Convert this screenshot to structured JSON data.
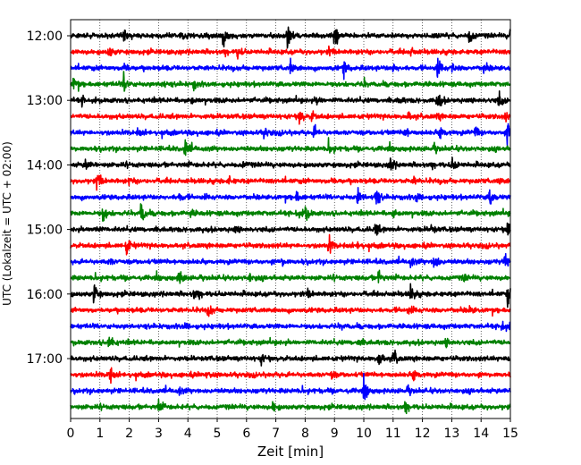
{
  "chart_data": {
    "type": "line",
    "title": "",
    "xlabel": "Zeit  [min]",
    "ylabel": "UTC (Lokalzeit = UTC + 02:00)",
    "xlim": [
      0,
      15
    ],
    "x_ticks": [
      "0",
      "1",
      "2",
      "3",
      "4",
      "5",
      "6",
      "7",
      "8",
      "9",
      "10",
      "11",
      "12",
      "13",
      "14",
      "15"
    ],
    "y_tick_labels": [
      "12:00",
      "13:00",
      "14:00",
      "15:00",
      "16:00",
      "17:00"
    ],
    "grid": "vertical dotted at each minute",
    "line_minutes": 15,
    "start_time": "12:00",
    "colors_cycle": [
      "#000000",
      "#ff0000",
      "#0000ff",
      "#008000"
    ],
    "traces": [
      {
        "start": "12:00",
        "color": "#000000",
        "events": [
          [
            5.2,
            1.0
          ],
          [
            7.4,
            1.0
          ],
          [
            9.0,
            1.0
          ],
          [
            13.6,
            0.9
          ],
          [
            15.0,
            1.0
          ],
          [
            1.8,
            0.4
          ],
          [
            3.7,
            0.3
          ]
        ]
      },
      {
        "start": "12:15",
        "color": "#ff0000",
        "events": [
          [
            1.3,
            0.6
          ],
          [
            5.7,
            0.5
          ],
          [
            8.8,
            0.3
          ],
          [
            11.6,
            0.3
          ]
        ]
      },
      {
        "start": "12:30",
        "color": "#0000ff",
        "events": [
          [
            1.8,
            0.7
          ],
          [
            7.5,
            0.6
          ],
          [
            9.3,
            0.8
          ],
          [
            11.0,
            0.4
          ],
          [
            12.5,
            0.9
          ],
          [
            13.0,
            0.4
          ],
          [
            14.1,
            0.4
          ]
        ]
      },
      {
        "start": "12:45",
        "color": "#008000",
        "events": [
          [
            0.1,
            0.7
          ],
          [
            1.8,
            1.0
          ],
          [
            3.1,
            0.4
          ],
          [
            4.2,
            0.4
          ],
          [
            10.0,
            0.3
          ]
        ]
      },
      {
        "start": "13:00",
        "color": "#000000",
        "events": [
          [
            0.4,
            0.4
          ],
          [
            4.1,
            0.3
          ],
          [
            8.4,
            0.4
          ],
          [
            11.2,
            0.3
          ],
          [
            12.5,
            1.0
          ],
          [
            14.6,
            0.7
          ]
        ]
      },
      {
        "start": "13:15",
        "color": "#ff0000",
        "events": [
          [
            7.8,
            0.7
          ],
          [
            8.2,
            0.5
          ],
          [
            11.5,
            0.4
          ],
          [
            12.5,
            0.3
          ],
          [
            14.8,
            0.4
          ]
        ]
      },
      {
        "start": "13:30",
        "color": "#0000ff",
        "events": [
          [
            2.3,
            0.3
          ],
          [
            6.6,
            0.5
          ],
          [
            8.3,
            0.6
          ],
          [
            11.4,
            0.5
          ],
          [
            12.6,
            0.8
          ],
          [
            13.8,
            0.5
          ],
          [
            14.9,
            1.0
          ]
        ]
      },
      {
        "start": "13:45",
        "color": "#008000",
        "events": [
          [
            3.9,
            1.0
          ],
          [
            8.8,
            0.5
          ],
          [
            12.4,
            0.3
          ]
        ]
      },
      {
        "start": "14:00",
        "color": "#000000",
        "events": [
          [
            0.5,
            0.5
          ],
          [
            5.9,
            0.3
          ],
          [
            10.9,
            0.8
          ],
          [
            13.0,
            0.8
          ]
        ]
      },
      {
        "start": "14:15",
        "color": "#ff0000",
        "events": [
          [
            0.9,
            0.9
          ],
          [
            2.0,
            0.3
          ],
          [
            5.4,
            0.3
          ],
          [
            8.9,
            0.3
          ],
          [
            11.7,
            0.3
          ],
          [
            14.6,
            0.3
          ]
        ]
      },
      {
        "start": "14:30",
        "color": "#0000ff",
        "events": [
          [
            3.7,
            0.4
          ],
          [
            7.7,
            0.5
          ],
          [
            9.8,
            0.8
          ],
          [
            10.4,
            1.0
          ],
          [
            11.8,
            0.5
          ],
          [
            14.3,
            0.9
          ]
        ]
      },
      {
        "start": "14:45",
        "color": "#008000",
        "events": [
          [
            1.1,
            0.8
          ],
          [
            2.4,
            1.0
          ],
          [
            4.1,
            0.3
          ],
          [
            7.7,
            0.4
          ],
          [
            8.0,
            1.0
          ],
          [
            11.0,
            0.4
          ]
        ]
      },
      {
        "start": "15:00",
        "color": "#000000",
        "events": [
          [
            0.8,
            0.4
          ],
          [
            5.6,
            0.3
          ],
          [
            10.4,
            0.6
          ],
          [
            12.3,
            0.4
          ],
          [
            14.9,
            1.0
          ]
        ]
      },
      {
        "start": "15:15",
        "color": "#ff0000",
        "events": [
          [
            1.9,
            0.9
          ],
          [
            8.8,
            1.0
          ],
          [
            9.8,
            0.3
          ]
        ]
      },
      {
        "start": "15:30",
        "color": "#0000ff",
        "events": [
          [
            1.3,
            0.3
          ],
          [
            7.2,
            0.3
          ],
          [
            11.6,
            0.4
          ],
          [
            12.4,
            1.0
          ],
          [
            14.8,
            0.9
          ]
        ]
      },
      {
        "start": "15:45",
        "color": "#008000",
        "events": [
          [
            3.7,
            0.9
          ],
          [
            6.1,
            0.3
          ],
          [
            10.5,
            0.7
          ],
          [
            13.4,
            0.3
          ]
        ]
      },
      {
        "start": "16:00",
        "color": "#000000",
        "events": [
          [
            0.8,
            1.0
          ],
          [
            4.2,
            0.4
          ],
          [
            8.1,
            0.3
          ],
          [
            11.6,
            0.9
          ],
          [
            14.9,
            0.9
          ]
        ]
      },
      {
        "start": "16:15",
        "color": "#ff0000",
        "events": [
          [
            4.7,
            0.6
          ],
          [
            11.5,
            0.3
          ],
          [
            13.6,
            0.3
          ]
        ]
      },
      {
        "start": "16:30",
        "color": "#0000ff",
        "events": [
          [
            3.9,
            0.3
          ],
          [
            9.2,
            0.3
          ],
          [
            14.7,
            0.9
          ]
        ]
      },
      {
        "start": "16:45",
        "color": "#008000",
        "events": [
          [
            1.3,
            0.9
          ],
          [
            9.8,
            0.3
          ],
          [
            12.8,
            0.3
          ]
        ]
      },
      {
        "start": "17:00",
        "color": "#000000",
        "events": [
          [
            6.5,
            0.4
          ],
          [
            10.5,
            0.9
          ],
          [
            11.0,
            0.8
          ],
          [
            14.9,
            0.4
          ]
        ]
      },
      {
        "start": "17:15",
        "color": "#ff0000",
        "events": [
          [
            1.3,
            0.9
          ],
          [
            4.6,
            0.4
          ],
          [
            8.9,
            0.4
          ],
          [
            11.7,
            0.7
          ]
        ]
      },
      {
        "start": "17:30",
        "color": "#0000ff",
        "events": [
          [
            3.7,
            0.3
          ],
          [
            10.0,
            0.8
          ],
          [
            11.5,
            0.3
          ]
        ]
      },
      {
        "start": "17:45",
        "color": "#008000",
        "events": [
          [
            3.0,
            0.5
          ],
          [
            6.9,
            0.5
          ],
          [
            11.4,
            0.3
          ]
        ]
      }
    ]
  }
}
